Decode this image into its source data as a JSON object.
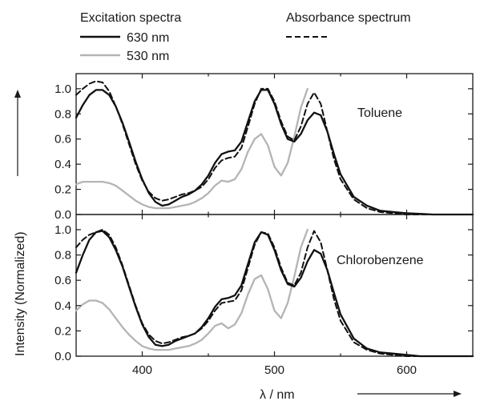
{
  "legend": {
    "group_title": "Excitation spectra",
    "absorbance_title": "Absorbance spectrum",
    "entries": [
      "630 nm",
      "530 nm"
    ]
  },
  "axes": {
    "xlabel": "λ / nm",
    "ylabel": "Intensity (Normalized)",
    "x_ticks": [
      "400",
      "500",
      "600"
    ],
    "y_ticks": [
      "0.0",
      "0.2",
      "0.4",
      "0.6",
      "0.8",
      "1.0"
    ]
  },
  "colors": {
    "ex630": "#111111",
    "ex530": "#b4b4b4",
    "absorbance": "#111111"
  },
  "chart_data": [
    {
      "type": "line",
      "panel": "Toluene",
      "xlabel": "λ / nm",
      "ylabel": "Intensity (Normalized)",
      "xlim": [
        350,
        650
      ],
      "ylim": [
        0,
        1.12
      ],
      "grid": false,
      "series": [
        {
          "name": "630 nm",
          "style": "solid-black",
          "x": [
            350,
            355,
            360,
            365,
            370,
            375,
            380,
            385,
            390,
            395,
            400,
            405,
            410,
            415,
            420,
            425,
            430,
            435,
            440,
            445,
            450,
            455,
            460,
            465,
            470,
            475,
            480,
            485,
            490,
            495,
            500,
            505,
            510,
            515,
            520,
            525,
            530,
            535,
            540,
            545,
            550,
            560,
            570,
            580,
            590,
            600,
            610,
            620,
            630,
            640,
            650
          ],
          "y": [
            0.77,
            0.87,
            0.95,
            0.99,
            0.99,
            0.95,
            0.86,
            0.73,
            0.58,
            0.42,
            0.28,
            0.17,
            0.1,
            0.07,
            0.08,
            0.11,
            0.14,
            0.16,
            0.19,
            0.24,
            0.31,
            0.41,
            0.48,
            0.5,
            0.51,
            0.58,
            0.74,
            0.9,
            0.99,
            0.99,
            0.88,
            0.72,
            0.6,
            0.58,
            0.64,
            0.75,
            0.81,
            0.79,
            0.66,
            0.48,
            0.32,
            0.14,
            0.07,
            0.03,
            0.02,
            0.01,
            0.005,
            0.0,
            0.0,
            0.0,
            0.0
          ]
        },
        {
          "name": "530 nm",
          "style": "solid-gray",
          "x": [
            350,
            355,
            360,
            365,
            370,
            375,
            380,
            385,
            390,
            395,
            400,
            405,
            410,
            415,
            420,
            425,
            430,
            435,
            440,
            445,
            450,
            455,
            460,
            465,
            470,
            475,
            480,
            485,
            490,
            495,
            500,
            505,
            510,
            515,
            520,
            525
          ],
          "y": [
            0.24,
            0.26,
            0.26,
            0.26,
            0.26,
            0.25,
            0.23,
            0.19,
            0.15,
            0.11,
            0.08,
            0.06,
            0.05,
            0.05,
            0.05,
            0.06,
            0.07,
            0.08,
            0.1,
            0.13,
            0.17,
            0.23,
            0.27,
            0.26,
            0.28,
            0.36,
            0.5,
            0.6,
            0.64,
            0.55,
            0.38,
            0.31,
            0.41,
            0.62,
            0.85,
            1.0
          ]
        },
        {
          "name": "Absorbance spectrum",
          "style": "dashed-black",
          "x": [
            350,
            355,
            360,
            365,
            370,
            375,
            380,
            385,
            390,
            395,
            400,
            405,
            410,
            415,
            420,
            425,
            430,
            435,
            440,
            445,
            450,
            455,
            460,
            465,
            470,
            475,
            480,
            485,
            490,
            495,
            500,
            505,
            510,
            515,
            520,
            525,
            530,
            535,
            540,
            545,
            550,
            560,
            570,
            580,
            590,
            600,
            610,
            620,
            630,
            640,
            650
          ],
          "y": [
            0.95,
            1.0,
            1.04,
            1.06,
            1.05,
            0.98,
            0.86,
            0.72,
            0.56,
            0.4,
            0.27,
            0.18,
            0.13,
            0.11,
            0.12,
            0.14,
            0.16,
            0.17,
            0.19,
            0.22,
            0.28,
            0.37,
            0.43,
            0.45,
            0.46,
            0.53,
            0.7,
            0.88,
            1.0,
            1.0,
            0.9,
            0.74,
            0.62,
            0.59,
            0.7,
            0.88,
            0.97,
            0.88,
            0.66,
            0.44,
            0.28,
            0.12,
            0.05,
            0.02,
            0.01,
            0.0,
            0.0,
            0.0,
            0.0,
            0.0,
            0.0
          ]
        }
      ]
    },
    {
      "type": "line",
      "panel": "Chlorobenzene",
      "xlabel": "λ / nm",
      "ylabel": "Intensity (Normalized)",
      "xlim": [
        350,
        650
      ],
      "ylim": [
        0,
        1.12
      ],
      "grid": false,
      "series": [
        {
          "name": "630 nm",
          "style": "solid-black",
          "x": [
            350,
            355,
            360,
            365,
            370,
            375,
            380,
            385,
            390,
            395,
            400,
            405,
            410,
            415,
            420,
            425,
            430,
            435,
            440,
            445,
            450,
            455,
            460,
            465,
            470,
            475,
            480,
            485,
            490,
            495,
            500,
            505,
            510,
            515,
            520,
            525,
            530,
            535,
            540,
            545,
            550,
            560,
            570,
            580,
            590,
            600,
            610,
            620,
            630,
            640,
            650
          ],
          "y": [
            0.66,
            0.8,
            0.92,
            0.98,
            0.99,
            0.94,
            0.84,
            0.71,
            0.55,
            0.39,
            0.25,
            0.15,
            0.09,
            0.08,
            0.09,
            0.12,
            0.14,
            0.16,
            0.18,
            0.23,
            0.3,
            0.39,
            0.45,
            0.46,
            0.48,
            0.56,
            0.73,
            0.9,
            0.98,
            0.96,
            0.84,
            0.68,
            0.57,
            0.55,
            0.62,
            0.75,
            0.84,
            0.81,
            0.68,
            0.5,
            0.33,
            0.14,
            0.06,
            0.03,
            0.02,
            0.01,
            0.0,
            0.0,
            0.0,
            0.0,
            0.0
          ]
        },
        {
          "name": "530 nm",
          "style": "solid-gray",
          "x": [
            350,
            355,
            360,
            365,
            370,
            375,
            380,
            385,
            390,
            395,
            400,
            405,
            410,
            415,
            420,
            425,
            430,
            435,
            440,
            445,
            450,
            455,
            460,
            465,
            470,
            475,
            480,
            485,
            490,
            495,
            500,
            505,
            510,
            515,
            520,
            525
          ],
          "y": [
            0.36,
            0.41,
            0.44,
            0.44,
            0.42,
            0.37,
            0.3,
            0.23,
            0.17,
            0.12,
            0.08,
            0.06,
            0.05,
            0.05,
            0.05,
            0.06,
            0.07,
            0.08,
            0.1,
            0.13,
            0.18,
            0.24,
            0.26,
            0.22,
            0.25,
            0.34,
            0.49,
            0.61,
            0.64,
            0.53,
            0.36,
            0.3,
            0.42,
            0.63,
            0.86,
            1.0
          ]
        },
        {
          "name": "Absorbance spectrum",
          "style": "dashed-black",
          "x": [
            350,
            355,
            360,
            365,
            370,
            375,
            380,
            385,
            390,
            395,
            400,
            405,
            410,
            415,
            420,
            425,
            430,
            435,
            440,
            445,
            450,
            455,
            460,
            465,
            470,
            475,
            480,
            485,
            490,
            495,
            500,
            505,
            510,
            515,
            520,
            525,
            530,
            535,
            540,
            545,
            550,
            560,
            570,
            580,
            590,
            600,
            610,
            620,
            630,
            640,
            650
          ],
          "y": [
            0.86,
            0.92,
            0.96,
            0.98,
            1.0,
            0.96,
            0.86,
            0.72,
            0.56,
            0.4,
            0.26,
            0.17,
            0.12,
            0.1,
            0.11,
            0.13,
            0.15,
            0.16,
            0.18,
            0.22,
            0.28,
            0.36,
            0.42,
            0.43,
            0.44,
            0.52,
            0.7,
            0.88,
            0.98,
            0.97,
            0.86,
            0.7,
            0.58,
            0.56,
            0.66,
            0.86,
            0.99,
            0.9,
            0.68,
            0.45,
            0.28,
            0.11,
            0.05,
            0.02,
            0.01,
            0.0,
            0.0,
            0.0,
            0.0,
            0.0,
            0.0
          ]
        }
      ]
    }
  ]
}
